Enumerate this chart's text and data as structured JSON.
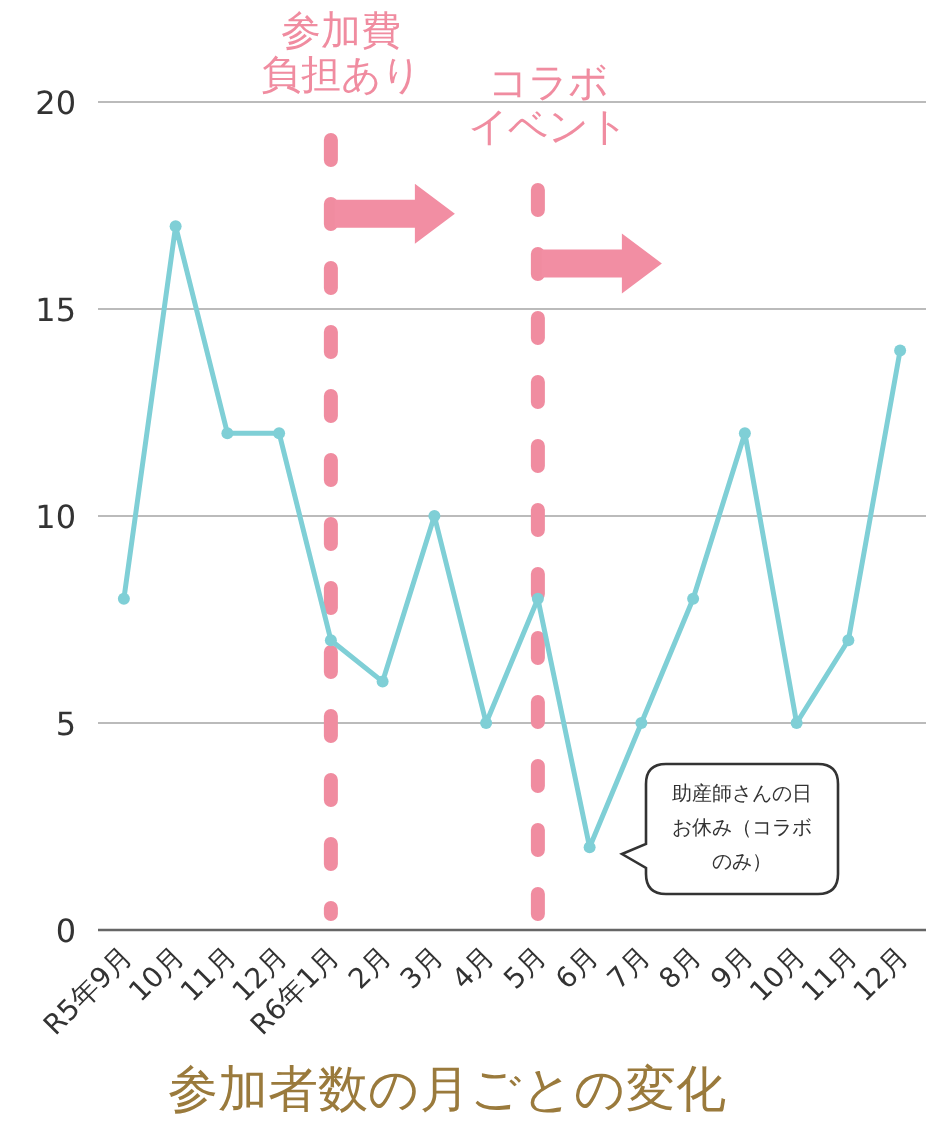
{
  "chart_data": {
    "type": "line",
    "title": "参加者数の月ごとの変化",
    "categories": [
      "R5年9月",
      "10月",
      "11月",
      "12月",
      "R6年1月",
      "2月",
      "3月",
      "4月",
      "5月",
      "6月",
      "7月",
      "8月",
      "9月",
      "10月",
      "11月",
      "12月"
    ],
    "series": [
      {
        "color": "#7fcfd6",
        "values": [
          8,
          17,
          12,
          12,
          7,
          6,
          10,
          5,
          8,
          2,
          5,
          8,
          12,
          5,
          7,
          14
        ]
      }
    ],
    "ylim": [
      0,
      20
    ],
    "yticks": [
      0,
      5,
      10,
      15,
      20
    ],
    "grid": "y",
    "marker": "circle",
    "line_style": "solid",
    "ref_lines": [
      {
        "axis": "x",
        "value": "R6年1月",
        "label": "参加費負担あり",
        "color": "#f08ca0",
        "line_style": "dashed"
      },
      {
        "axis": "x",
        "value": "5月",
        "label": "コラボイベント",
        "color": "#f08ca0",
        "line_style": "dashed"
      }
    ],
    "annotations": [
      "助産師さんの日お休み（コラボのみ）"
    ]
  }
}
